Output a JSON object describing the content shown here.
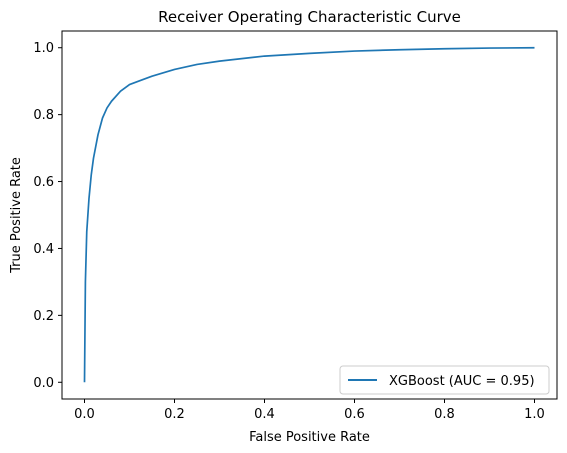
{
  "chart_data": {
    "type": "line",
    "title": "Receiver Operating Characteristic Curve",
    "xlabel": "False Positive Rate",
    "ylabel": "True Positive Rate",
    "xlim": [
      -0.05,
      1.05
    ],
    "ylim": [
      -0.05,
      1.05
    ],
    "xticks": [
      0.0,
      0.2,
      0.4,
      0.6,
      0.8,
      1.0
    ],
    "yticks": [
      0.0,
      0.2,
      0.4,
      0.6,
      0.8,
      1.0
    ],
    "xtick_labels": [
      "0.0",
      "0.2",
      "0.4",
      "0.6",
      "0.8",
      "1.0"
    ],
    "ytick_labels": [
      "0.0",
      "0.2",
      "0.4",
      "0.6",
      "0.8",
      "1.0"
    ],
    "grid": false,
    "legend_position": "lower-right",
    "series": [
      {
        "name": "XGBoost (AUC = 0.95)",
        "color": "#1f77b4",
        "x": [
          0.0,
          0.002,
          0.005,
          0.01,
          0.015,
          0.02,
          0.03,
          0.04,
          0.05,
          0.06,
          0.08,
          0.1,
          0.12,
          0.15,
          0.2,
          0.25,
          0.3,
          0.4,
          0.5,
          0.6,
          0.7,
          0.8,
          0.9,
          1.0
        ],
        "y": [
          0.0,
          0.3,
          0.45,
          0.55,
          0.62,
          0.67,
          0.74,
          0.79,
          0.82,
          0.84,
          0.87,
          0.89,
          0.9,
          0.915,
          0.935,
          0.95,
          0.96,
          0.975,
          0.983,
          0.99,
          0.994,
          0.997,
          0.999,
          1.0
        ]
      }
    ]
  }
}
